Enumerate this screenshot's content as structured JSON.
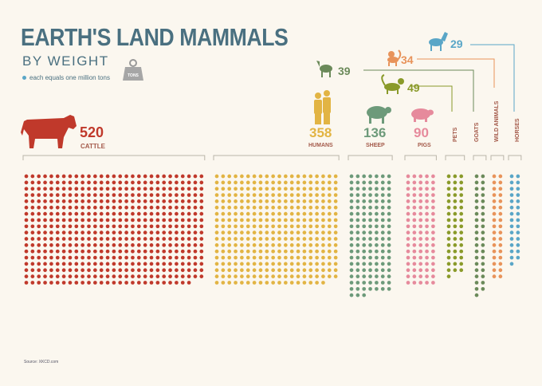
{
  "title": "EARTH'S LAND MAMMALS",
  "subtitle": "BY WEIGHT",
  "legend_text": "each equals one million tons",
  "weight_icon_label": "TONS",
  "source": "Source: XKCD.com",
  "chart_data": {
    "type": "dot-matrix",
    "unit": "million tons",
    "categories": [
      "CATTLE",
      "HUMANS",
      "SHEEP",
      "PIGS",
      "PETS",
      "GOATS",
      "WILD ANIMALS",
      "HORSES"
    ],
    "series": [
      {
        "category": "CATTLE",
        "value": 520,
        "label": "520",
        "color": "#c0392b"
      },
      {
        "category": "HUMANS",
        "value": 358,
        "label": "358",
        "color": "#e2b443"
      },
      {
        "category": "SHEEP",
        "value": 136,
        "label": "136",
        "color": "#6d9a7a"
      },
      {
        "category": "PIGS",
        "value": 90,
        "label": "90",
        "color": "#e68a9c"
      },
      {
        "category": "PETS",
        "value": 49,
        "label": "49",
        "color": "#8a9a2a"
      },
      {
        "category": "GOATS",
        "value": 39,
        "label": "39",
        "color": "#6b8a5a"
      },
      {
        "category": "WILD ANIMALS",
        "value": 34,
        "label": "34",
        "color": "#e8935a"
      },
      {
        "category": "HORSES",
        "value": 29,
        "label": "29",
        "color": "#5aa6c7"
      }
    ]
  }
}
